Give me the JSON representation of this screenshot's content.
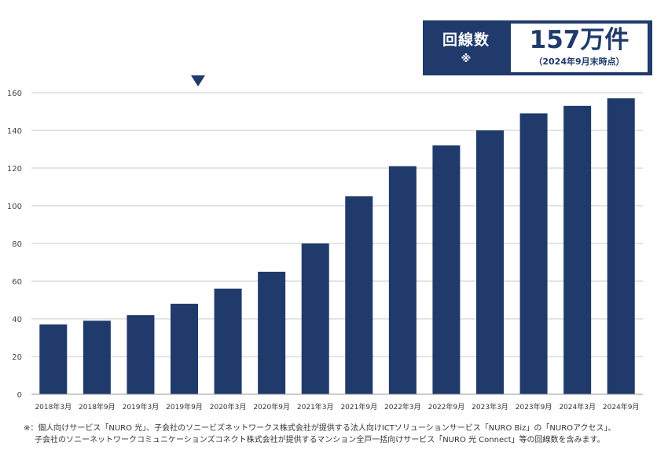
{
  "callout": {
    "label": "回線数",
    "mark": "※",
    "value": "157万件",
    "date": "（2024年9月末時点）"
  },
  "footnote": {
    "line1": "※：個人向けサービス「NURO 光」、子会社のソニービズネットワークス株式会社が提供する法人向けICTソリューションサービス「NURO Biz」の「NUROアクセス」、",
    "line2": "子会社のソニーネットワークコミュニケーションズコネクト株式会社が提供するマンション全戸一括向けサービス「NURO 光 Connect」等の回線数を含みます。"
  },
  "chart_data": {
    "type": "bar",
    "title": "",
    "xlabel": "",
    "ylabel": "",
    "categories": [
      "2018年3月",
      "2018年9月",
      "2019年3月",
      "2019年9月",
      "2020年3月",
      "2020年9月",
      "2021年3月",
      "2021年9月",
      "2022年3月",
      "2022年9月",
      "2023年3月",
      "2023年9月",
      "2024年3月",
      "2024年9月"
    ],
    "values": [
      37,
      39,
      42,
      48,
      56,
      65,
      80,
      105,
      121,
      132,
      140,
      149,
      153,
      157
    ],
    "ylim": [
      0,
      160
    ],
    "yticks": [
      0,
      20,
      40,
      60,
      80,
      100,
      120,
      140,
      160
    ],
    "grid": true,
    "bar_color": "#1f3a6b"
  }
}
